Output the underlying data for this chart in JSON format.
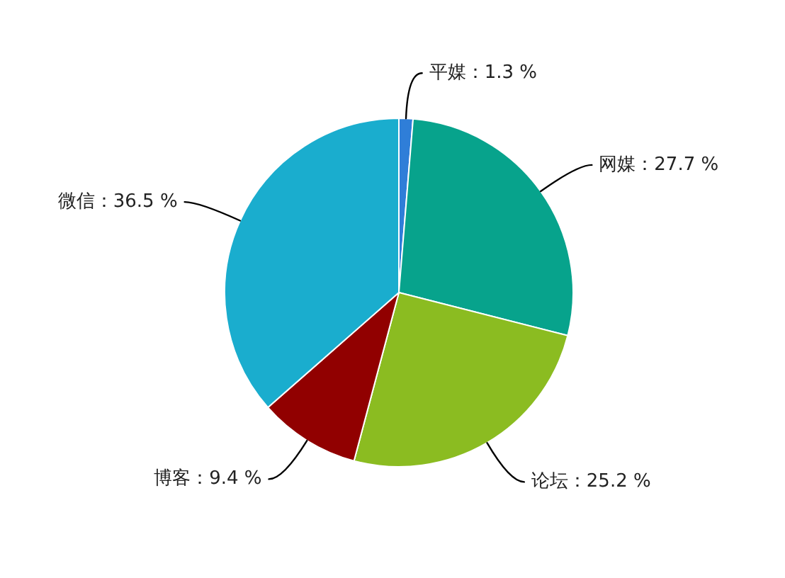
{
  "chart_data": {
    "type": "pie",
    "categories": [
      "平媒",
      "网媒",
      "论坛",
      "博客",
      "微信"
    ],
    "values": [
      1.3,
      27.7,
      25.2,
      9.4,
      36.5
    ],
    "colors": [
      "#2f7ed8",
      "#07a38c",
      "#8bbc21",
      "#910000",
      "#1aadce"
    ],
    "value_labels": [
      "1.3 %",
      "27.7 %",
      "25.2 %",
      "9.4 %",
      "36.5 %"
    ]
  }
}
